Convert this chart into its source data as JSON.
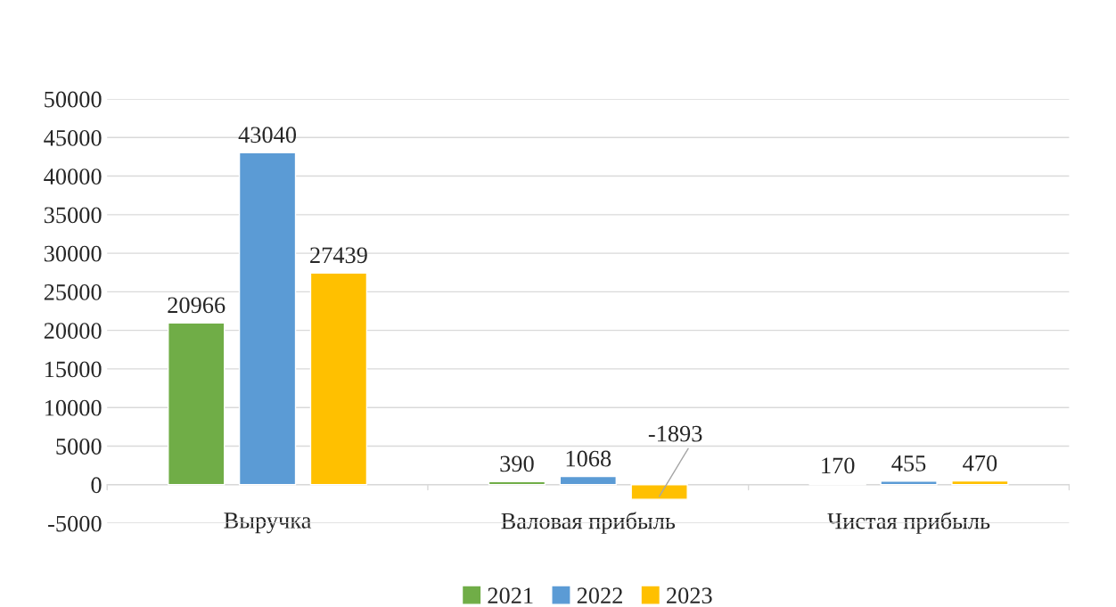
{
  "chart_data": {
    "type": "bar",
    "categories": [
      "Выручка",
      "Валовая прибыль",
      "Чистая прибыль"
    ],
    "series": [
      {
        "name": "2021",
        "color": "#70ad47",
        "values": [
          20966,
          390,
          170
        ]
      },
      {
        "name": "2022",
        "color": "#5b9bd5",
        "values": [
          43040,
          1068,
          455
        ]
      },
      {
        "name": "2023",
        "color": "#ffc000",
        "values": [
          27439,
          -1893,
          470
        ]
      }
    ],
    "ylim": [
      -5000,
      50000
    ],
    "yticks": [
      -5000,
      0,
      5000,
      10000,
      15000,
      20000,
      25000,
      30000,
      35000,
      40000,
      45000,
      50000
    ],
    "grid": "y",
    "legend": "bottom",
    "data_labels": true
  }
}
